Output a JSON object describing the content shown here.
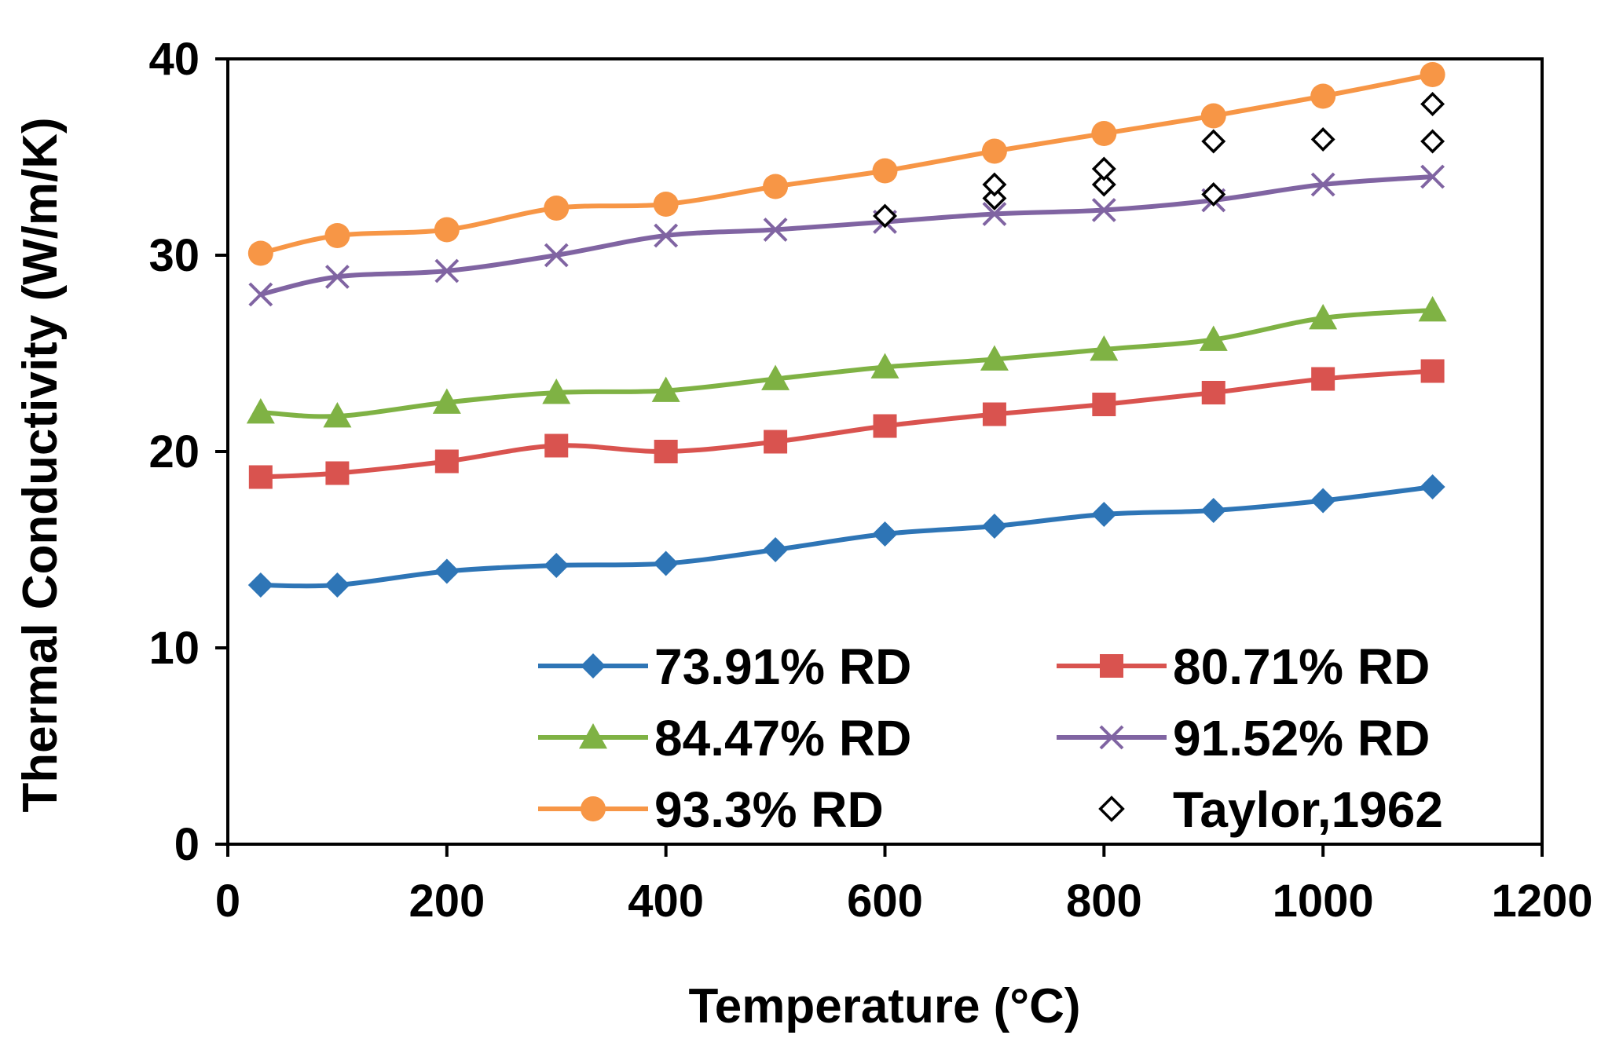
{
  "chart_data": {
    "type": "line",
    "title": "",
    "xlabel": "Temperature (°C)",
    "ylabel": "Thermal Conductivity (W/m/K)",
    "xlim": [
      0,
      1200
    ],
    "ylim": [
      0,
      40
    ],
    "xticks": [
      0,
      200,
      400,
      600,
      800,
      1000,
      1200
    ],
    "yticks": [
      0,
      10,
      20,
      30,
      40
    ],
    "xtick_labels": [
      "0",
      "200",
      "400",
      "600",
      "800",
      "1000",
      "1200"
    ],
    "ytick_labels": [
      "0",
      "10",
      "20",
      "30",
      "40"
    ],
    "grid": false,
    "legend_position": "lower-right inside plot",
    "series": [
      {
        "name": "73.91% RD",
        "color": "#2E75B6",
        "marker": "diamond",
        "line": true,
        "x": [
          30,
          100,
          200,
          300,
          400,
          500,
          600,
          700,
          800,
          900,
          1000,
          1100
        ],
        "y": [
          13.2,
          13.2,
          13.9,
          14.2,
          14.3,
          15.0,
          15.8,
          16.2,
          16.8,
          17.0,
          17.5,
          18.2
        ]
      },
      {
        "name": "80.71% RD",
        "color": "#D9534F",
        "marker": "square",
        "line": true,
        "x": [
          30,
          100,
          200,
          300,
          400,
          500,
          600,
          700,
          800,
          900,
          1000,
          1100
        ],
        "y": [
          18.7,
          18.9,
          19.5,
          20.3,
          20.0,
          20.5,
          21.3,
          21.9,
          22.4,
          23.0,
          23.7,
          24.1
        ]
      },
      {
        "name": "84.47% RD",
        "color": "#7FB244",
        "marker": "triangle",
        "line": true,
        "x": [
          30,
          100,
          200,
          300,
          400,
          500,
          600,
          700,
          800,
          900,
          1000,
          1100
        ],
        "y": [
          22.0,
          21.8,
          22.5,
          23.0,
          23.1,
          23.7,
          24.3,
          24.7,
          25.2,
          25.7,
          26.8,
          27.2
        ]
      },
      {
        "name": "91.52% RD",
        "color": "#8064A2",
        "marker": "x",
        "line": true,
        "x": [
          30,
          100,
          200,
          300,
          400,
          500,
          600,
          700,
          800,
          900,
          1000,
          1100
        ],
        "y": [
          28.0,
          28.9,
          29.2,
          30.0,
          31.0,
          31.3,
          31.7,
          32.1,
          32.3,
          32.8,
          33.6,
          34.0
        ]
      },
      {
        "name": "93.3% RD",
        "color": "#F79646",
        "marker": "circle",
        "line": true,
        "x": [
          30,
          100,
          200,
          300,
          400,
          500,
          600,
          700,
          800,
          900,
          1000,
          1100
        ],
        "y": [
          30.1,
          31.0,
          31.3,
          32.4,
          32.6,
          33.5,
          34.3,
          35.3,
          36.2,
          37.1,
          38.1,
          39.2
        ]
      },
      {
        "name": "Taylor,1962",
        "color": "#000000",
        "marker": "open-diamond",
        "line": false,
        "x": [
          600,
          700,
          700,
          800,
          800,
          900,
          900,
          1000,
          1100,
          1100
        ],
        "y": [
          32.0,
          32.9,
          33.6,
          33.6,
          34.4,
          33.1,
          35.8,
          35.9,
          35.8,
          37.7
        ]
      }
    ]
  }
}
